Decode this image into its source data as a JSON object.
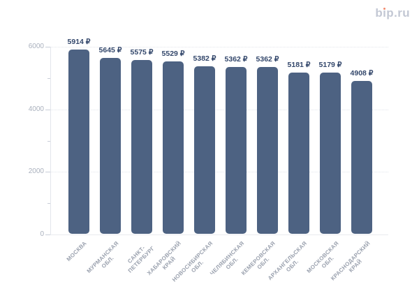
{
  "page": {
    "background": "#ffffff"
  },
  "logo": {
    "full_text": "bip.ru",
    "part_before_i": "b",
    "part_i": "ı",
    "part_after_i": "p.ru",
    "text_color": "#c3c8d4",
    "dot_color": "#f18a6d"
  },
  "chart_data": {
    "type": "bar",
    "title": "",
    "xlabel": "",
    "ylabel": "",
    "categories": [
      "Москва",
      "Мурманская обл.",
      "Санкт-Петербург",
      "Хабаровский край",
      "Новосибирская обл.",
      "Челябинская обл.",
      "Кемеровская обл.",
      "Архангельская обл.",
      "Московская обл.",
      "Краснодарский край"
    ],
    "category_tick_lines": [
      [
        "МОСКВА"
      ],
      [
        "МУРМАНСКАЯ",
        "ОБЛ."
      ],
      [
        "САНКТ-",
        "ПЕТЕРБУРГ"
      ],
      [
        "ХАБАРОВСКИЙ",
        "КРАЙ"
      ],
      [
        "НОВОСИБИРСКАЯ",
        "ОБЛ."
      ],
      [
        "ЧЕЛЯБИНСКАЯ",
        "ОБЛ."
      ],
      [
        "КЕМЕРОВСКАЯ",
        "ОБЛ."
      ],
      [
        "АРХАНГЕЛЬСКАЯ",
        "ОБЛ."
      ],
      [
        "МОСКОВСКАЯ",
        "ОБЛ."
      ],
      [
        "КРАСНОДАРСКИЙ",
        "КРАЙ"
      ]
    ],
    "values": [
      5914,
      5645,
      5575,
      5529,
      5382,
      5362,
      5362,
      5181,
      5179,
      4908
    ],
    "value_labels": [
      "5914 ₽",
      "5645 ₽",
      "5575 ₽",
      "5529 ₽",
      "5382 ₽",
      "5362 ₽",
      "5362 ₽",
      "5181 ₽",
      "5179 ₽",
      "4908 ₽"
    ],
    "currency_symbol": "₽",
    "ylim": [
      0,
      6000
    ],
    "ytick_labels": [
      "0",
      "2000",
      "4000",
      "6000"
    ],
    "yticks_major": [
      0,
      2000,
      4000,
      6000
    ],
    "yticks_minor": [
      1000,
      3000,
      5000
    ],
    "grid": "horizontal-dotted",
    "legend": "none",
    "bar_color": "#4d6282",
    "value_label_color": "#33476b",
    "axis_tick_label_color": "#a9b0bd",
    "category_label_color": "#9aa1ae"
  }
}
